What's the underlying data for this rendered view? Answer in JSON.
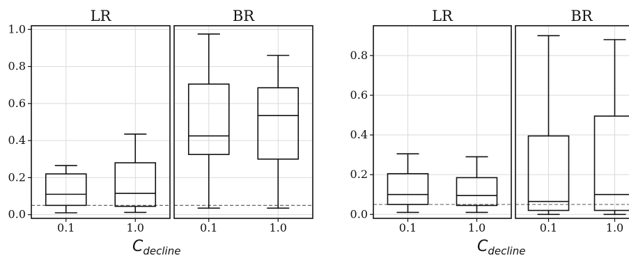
{
  "chart_data": [
    {
      "type": "box",
      "ref_line": 0.05,
      "ylim": [
        -0.02,
        1.02
      ],
      "yticks": [
        0.0,
        0.2,
        0.4,
        0.6,
        0.8,
        1.0
      ],
      "ytick_labels": [
        "0.0",
        "0.2",
        "0.4",
        "0.6",
        "0.8",
        "1.0"
      ],
      "xlabel_main": "C",
      "xlabel_sub": "decline",
      "panels": [
        {
          "title": "LR",
          "categories": [
            "0.1",
            "1.0"
          ],
          "boxes": [
            {
              "category": "0.1",
              "whisker_low": 0.01,
              "q1": 0.05,
              "median": 0.11,
              "q3": 0.22,
              "whisker_high": 0.265
            },
            {
              "category": "1.0",
              "whisker_low": 0.012,
              "q1": 0.045,
              "median": 0.115,
              "q3": 0.28,
              "whisker_high": 0.435
            }
          ]
        },
        {
          "title": "BR",
          "categories": [
            "0.1",
            "1.0"
          ],
          "boxes": [
            {
              "category": "0.1",
              "whisker_low": 0.035,
              "q1": 0.325,
              "median": 0.425,
              "q3": 0.705,
              "whisker_high": 0.975
            },
            {
              "category": "1.0",
              "whisker_low": 0.035,
              "q1": 0.3,
              "median": 0.535,
              "q3": 0.685,
              "whisker_high": 0.86
            }
          ]
        }
      ]
    },
    {
      "type": "box",
      "ref_line": 0.05,
      "ylim": [
        -0.02,
        0.95
      ],
      "yticks": [
        0.0,
        0.2,
        0.4,
        0.6,
        0.8
      ],
      "ytick_labels": [
        "0.0",
        "0.2",
        "0.4",
        "0.6",
        "0.8"
      ],
      "xlabel_main": "C",
      "xlabel_sub": "decline",
      "panels": [
        {
          "title": "LR",
          "categories": [
            "0.1",
            "1.0"
          ],
          "boxes": [
            {
              "category": "0.1",
              "whisker_low": 0.01,
              "q1": 0.05,
              "median": 0.1,
              "q3": 0.205,
              "whisker_high": 0.305
            },
            {
              "category": "1.0",
              "whisker_low": 0.01,
              "q1": 0.045,
              "median": 0.095,
              "q3": 0.185,
              "whisker_high": 0.29
            }
          ]
        },
        {
          "title": "BR",
          "categories": [
            "0.1",
            "1.0"
          ],
          "boxes": [
            {
              "category": "0.1",
              "whisker_low": 0.0,
              "q1": 0.02,
              "median": 0.065,
              "q3": 0.395,
              "whisker_high": 0.9
            },
            {
              "category": "1.0",
              "whisker_low": 0.0,
              "q1": 0.02,
              "median": 0.1,
              "q3": 0.495,
              "whisker_high": 0.88
            }
          ]
        }
      ]
    }
  ]
}
